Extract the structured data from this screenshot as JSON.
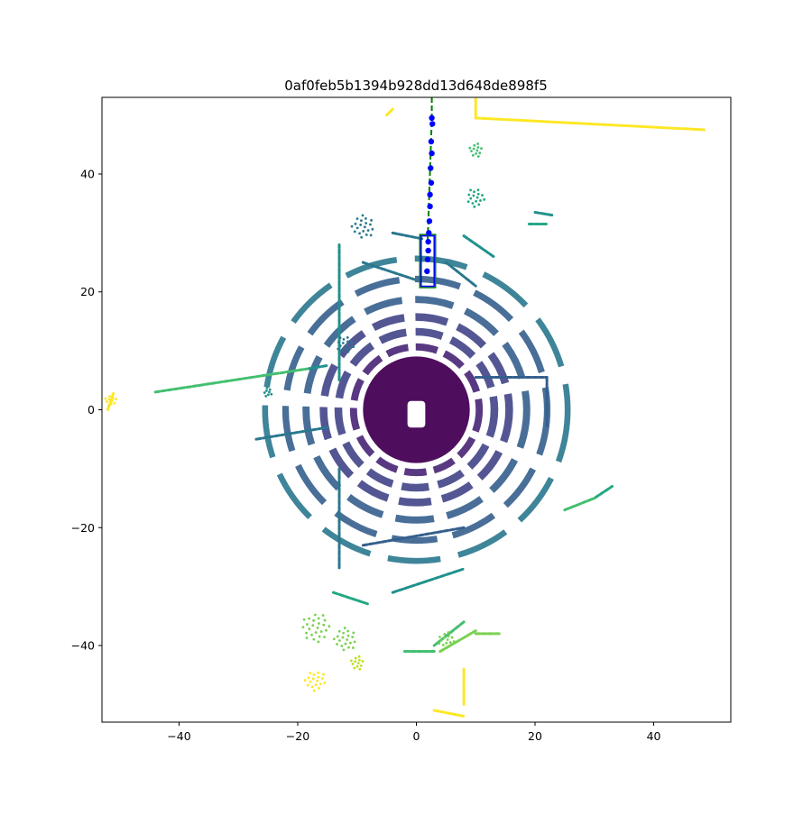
{
  "chart_data": {
    "type": "scatter",
    "title": "0af0feb5b1394b928dd13d648de898f5",
    "xlabel": "",
    "ylabel": "",
    "xlim": [
      -53,
      53
    ],
    "ylim": [
      -53,
      53
    ],
    "x_ticks": [
      -40,
      -20,
      0,
      20,
      40
    ],
    "y_ticks": [
      -40,
      -20,
      0,
      20,
      40
    ],
    "x_tick_labels": [
      "−40",
      "−20",
      "0",
      "20",
      "40"
    ],
    "y_tick_labels": [
      "−40",
      "−20",
      "0",
      "20",
      "40"
    ],
    "grid": false,
    "colormap": "viridis",
    "colors": {
      "viridis": [
        "#440154",
        "#482475",
        "#414487",
        "#355f8d",
        "#2a788e",
        "#21918c",
        "#22a884",
        "#44bf70",
        "#7ad151",
        "#bddf26",
        "#fde725"
      ],
      "trajectory_points": "#0000ff",
      "track_line": "#008000",
      "box_outline": "#0000ff",
      "box_outline_outer": "#008000"
    },
    "lidar_regions": [
      {
        "name": "near-field disc",
        "center": [
          0,
          0
        ],
        "r_inner": 3,
        "r_outer": 9,
        "color_index": 0
      },
      {
        "name": "ring 1",
        "center": [
          0,
          0
        ],
        "r_inner": 10,
        "r_outer": 11.2,
        "color_index": 1
      },
      {
        "name": "ring 2",
        "center": [
          0,
          0
        ],
        "r_inner": 12.5,
        "r_outer": 13.8,
        "color_index": 2
      },
      {
        "name": "ring 3",
        "center": [
          0,
          0
        ],
        "r_inner": 15,
        "r_outer": 16.3,
        "color_index": 2
      },
      {
        "name": "ring 4",
        "center": [
          0,
          0
        ],
        "r_inner": 18,
        "r_outer": 19.2,
        "color_index": 3
      },
      {
        "name": "ring 5",
        "center": [
          0,
          0
        ],
        "r_inner": 21.5,
        "r_outer": 22.6,
        "color_index": 3
      },
      {
        "name": "ring 6",
        "center": [
          0,
          0
        ],
        "r_inner": 25,
        "r_outer": 26,
        "color_index": 4
      }
    ],
    "lidar_segments": [
      {
        "from": [
          -44,
          3
        ],
        "to": [
          -18,
          7
        ],
        "color_index": 7
      },
      {
        "from": [
          -18,
          7
        ],
        "to": [
          -15,
          7.5
        ],
        "color_index": 5
      },
      {
        "from": [
          -27,
          -5
        ],
        "to": [
          -15,
          -3
        ],
        "color_index": 4
      },
      {
        "from": [
          -13,
          -10
        ],
        "to": [
          -13,
          -27
        ],
        "color_index": 4
      },
      {
        "from": [
          -13,
          5
        ],
        "to": [
          -13,
          28
        ],
        "color_index": 5
      },
      {
        "from": [
          10,
          49.5
        ],
        "to": [
          48.5,
          47.5
        ],
        "color_index": 10
      },
      {
        "from": [
          10,
          53
        ],
        "to": [
          10,
          49.5
        ],
        "color_index": 10
      },
      {
        "from": [
          10,
          5.5
        ],
        "to": [
          22,
          5.5
        ],
        "color_index": 3
      },
      {
        "from": [
          22,
          5.5
        ],
        "to": [
          22,
          -3
        ],
        "color_index": 3
      },
      {
        "from": [
          10,
          -38
        ],
        "to": [
          14,
          -38
        ],
        "color_index": 8
      },
      {
        "from": [
          4,
          -41
        ],
        "to": [
          10,
          -37.5
        ],
        "color_index": 8
      },
      {
        "from": [
          -2,
          -41
        ],
        "to": [
          3,
          -41
        ],
        "color_index": 7
      },
      {
        "from": [
          -14,
          -31
        ],
        "to": [
          -8,
          -33
        ],
        "color_index": 6
      },
      {
        "from": [
          -4,
          -31
        ],
        "to": [
          8,
          -27
        ],
        "color_index": 5
      },
      {
        "from": [
          -9,
          -23
        ],
        "to": [
          8,
          -20
        ],
        "color_index": 3
      },
      {
        "from": [
          20,
          33.5
        ],
        "to": [
          23,
          33
        ],
        "color_index": 5
      },
      {
        "from": [
          19,
          31.5
        ],
        "to": [
          22,
          31.5
        ],
        "color_index": 6
      },
      {
        "from": [
          8,
          29.5
        ],
        "to": [
          13,
          26
        ],
        "color_index": 5
      },
      {
        "from": [
          -4,
          30
        ],
        "to": [
          1,
          29
        ],
        "color_index": 4
      },
      {
        "from": [
          -9,
          25
        ],
        "to": [
          0,
          22
        ],
        "color_index": 4
      },
      {
        "from": [
          5,
          25
        ],
        "to": [
          10,
          21
        ],
        "color_index": 4
      },
      {
        "from": [
          8,
          -36
        ],
        "to": [
          3,
          -40
        ],
        "color_index": 7
      },
      {
        "from": [
          30,
          -15
        ],
        "to": [
          33,
          -13
        ],
        "color_index": 6
      },
      {
        "from": [
          25,
          -17
        ],
        "to": [
          30,
          -15
        ],
        "color_index": 7
      },
      {
        "from": [
          -52,
          0
        ],
        "to": [
          -51,
          3
        ],
        "color_index": 10
      },
      {
        "from": [
          -5,
          50
        ],
        "to": [
          -4,
          51
        ],
        "color_index": 10
      },
      {
        "from": [
          8,
          -50
        ],
        "to": [
          8,
          -44
        ],
        "color_index": 10
      },
      {
        "from": [
          3,
          -51
        ],
        "to": [
          8,
          -52
        ],
        "color_index": 10
      }
    ],
    "lidar_blobs": [
      {
        "center": [
          -17,
          -37
        ],
        "radius": 2.5,
        "color_index": 8
      },
      {
        "center": [
          -12,
          -39
        ],
        "radius": 2,
        "color_index": 8
      },
      {
        "center": [
          -9,
          31
        ],
        "radius": 2,
        "color_index": 4
      },
      {
        "center": [
          10,
          36
        ],
        "radius": 1.6,
        "color_index": 6
      },
      {
        "center": [
          10,
          44
        ],
        "radius": 1.2,
        "color_index": 7
      },
      {
        "center": [
          -10,
          -43
        ],
        "radius": 1.2,
        "color_index": 9
      },
      {
        "center": [
          -17,
          -46
        ],
        "radius": 1.8,
        "color_index": 10
      },
      {
        "center": [
          5,
          -39
        ],
        "radius": 1.4,
        "color_index": 8
      },
      {
        "center": [
          -12,
          11
        ],
        "radius": 1.5,
        "color_index": 4
      },
      {
        "center": [
          -25,
          3
        ],
        "radius": 0.8,
        "color_index": 5
      },
      {
        "center": [
          -51.5,
          1.5
        ],
        "radius": 1,
        "color_index": 10
      }
    ],
    "trajectory": {
      "name": "trajectory",
      "x": [
        2.6,
        2.7,
        2.5,
        2.6,
        2.4,
        2.5,
        2.3,
        2.3,
        2.2,
        2.1,
        2.0,
        2.0,
        1.9,
        1.8
      ],
      "y": [
        49.5,
        48.5,
        45.5,
        43.5,
        41,
        38.5,
        36.5,
        34.5,
        32,
        30,
        28.5,
        27,
        25.5,
        23.5
      ]
    },
    "track_line": {
      "x": [
        2.6,
        2.6,
        1.9
      ],
      "y": [
        53,
        49.5,
        28.5
      ]
    },
    "box": {
      "x_range": [
        0.8,
        3.0
      ],
      "y_range": [
        21,
        29.5
      ]
    },
    "ego_vehicle": {
      "x_range": [
        -1.5,
        1.5
      ],
      "y_range": [
        -3,
        1.5
      ]
    }
  }
}
